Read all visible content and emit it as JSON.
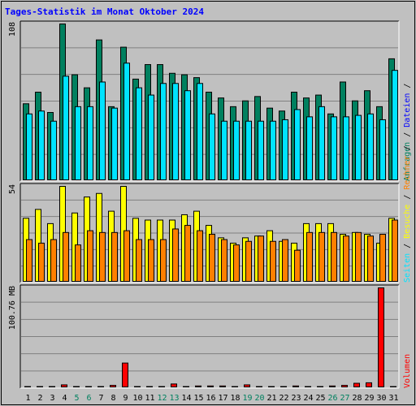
{
  "header": {
    "title": "Tages-Statistik im Monat Oktober 2024"
  },
  "chart_data": [
    {
      "type": "bar",
      "panel": "hits",
      "max_label": "108",
      "ylim": [
        0,
        108
      ],
      "categories": [
        "1",
        "2",
        "3",
        "4",
        "5",
        "6",
        "7",
        "8",
        "9",
        "10",
        "11",
        "12",
        "13",
        "14",
        "15",
        "16",
        "17",
        "18",
        "19",
        "20",
        "21",
        "22",
        "23",
        "24",
        "25",
        "26",
        "27",
        "28",
        "29",
        "30",
        "31"
      ],
      "weekend_days": [
        "5",
        "6",
        "12",
        "13",
        "19",
        "20",
        "26",
        "27"
      ],
      "series": [
        {
          "name": "Anfragen",
          "color": "#00805f",
          "values": [
            53,
            61,
            47,
            108,
            73,
            64,
            97,
            51,
            92,
            70,
            80,
            80,
            74,
            73,
            71,
            61,
            57,
            51,
            55,
            58,
            50,
            48,
            61,
            57,
            59,
            46,
            68,
            55,
            62,
            51,
            84
          ]
        },
        {
          "name": "Dateien",
          "color": "#00e3ff",
          "values": [
            46,
            48,
            41,
            72,
            51,
            51,
            68,
            50,
            81,
            64,
            59,
            67,
            67,
            62,
            67,
            46,
            41,
            41,
            41,
            41,
            41,
            42,
            49,
            44,
            51,
            44,
            44,
            45,
            46,
            42,
            76
          ]
        }
      ],
      "side_labels": [
        "Anfragen",
        "Dateien"
      ],
      "side_colors": [
        "#00805f",
        "#0000ff"
      ]
    },
    {
      "type": "bar",
      "panel": "visits",
      "max_label": "54",
      "ylim": [
        0,
        54
      ],
      "categories": [
        "1",
        "2",
        "3",
        "4",
        "5",
        "6",
        "7",
        "8",
        "9",
        "10",
        "11",
        "12",
        "13",
        "14",
        "15",
        "16",
        "17",
        "18",
        "19",
        "20",
        "21",
        "22",
        "23",
        "24",
        "25",
        "26",
        "27",
        "28",
        "29",
        "30",
        "31"
      ],
      "series": [
        {
          "name": "Besuche",
          "color": "#ffff00",
          "values": [
            36,
            41,
            33,
            54,
            39,
            48,
            50,
            40,
            54,
            36,
            35,
            35,
            35,
            38,
            40,
            32,
            25,
            22,
            25,
            26,
            29,
            23,
            22,
            33,
            33,
            33,
            27,
            28,
            27,
            22,
            36
          ]
        },
        {
          "name": "Rechner",
          "color": "#ff8000",
          "values": [
            24,
            22,
            24,
            28,
            21,
            29,
            28,
            28,
            29,
            24,
            24,
            24,
            30,
            32,
            29,
            27,
            24,
            21,
            23,
            26,
            23,
            24,
            18,
            28,
            28,
            28,
            26,
            28,
            26,
            27,
            35
          ]
        }
      ],
      "side_labels": [
        "Seiten",
        "Besuche",
        "Rechner"
      ],
      "side_colors": [
        "#00e3ff",
        "#ffff00",
        "#ff8000"
      ]
    },
    {
      "type": "bar",
      "panel": "volume",
      "max_label": "100.76 MB",
      "ylim": [
        0,
        100.76
      ],
      "unit": "MB",
      "categories": [
        "1",
        "2",
        "3",
        "4",
        "5",
        "6",
        "7",
        "8",
        "9",
        "10",
        "11",
        "12",
        "13",
        "14",
        "15",
        "16",
        "17",
        "18",
        "19",
        "20",
        "21",
        "22",
        "23",
        "24",
        "25",
        "26",
        "27",
        "28",
        "29",
        "30",
        "31"
      ],
      "series": [
        {
          "name": "Volumen",
          "color": "#ff0000",
          "values": [
            1.2,
            1.2,
            1.2,
            2.9,
            1.2,
            1.2,
            1.2,
            2.4,
            24.9,
            1.2,
            1.2,
            1.2,
            3.8,
            1.2,
            1.8,
            1.8,
            1.8,
            1.2,
            2.9,
            1.2,
            1.2,
            1.2,
            1.8,
            1.2,
            1.2,
            1.8,
            2.4,
            4.5,
            5.0,
            100.76,
            1.2
          ]
        }
      ],
      "side_labels": [
        "Volumen"
      ],
      "side_colors": [
        "#ff0000"
      ]
    }
  ],
  "legend": {
    "sep": "/",
    "sep_color": "#000000"
  },
  "colors": {
    "background": "#c0c0c0",
    "title": "#0000ff",
    "grid": "#808080",
    "weekend_label": "#00805f",
    "weekday_label": "#000000"
  }
}
